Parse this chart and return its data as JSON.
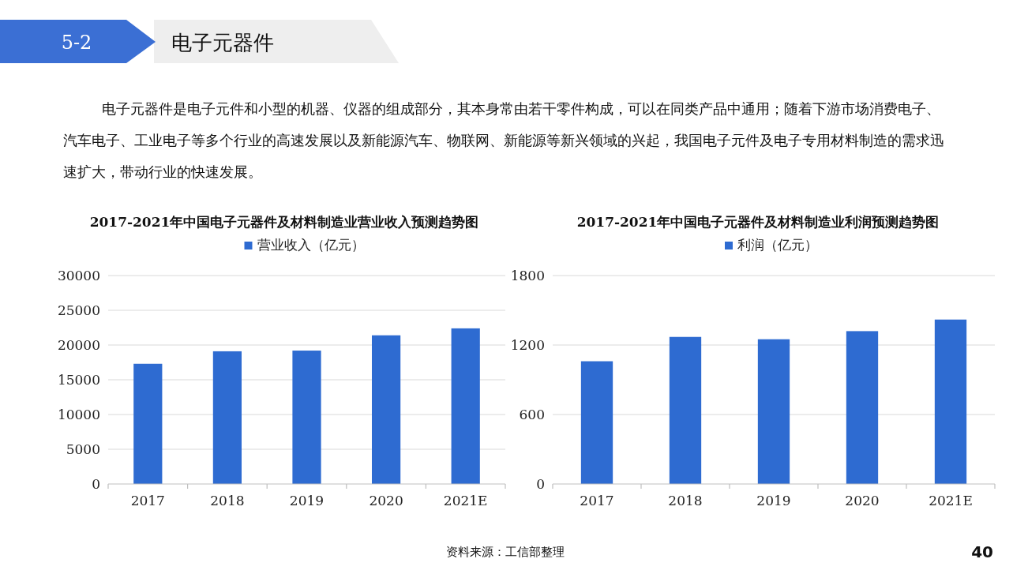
{
  "chart_data": [
    {
      "type": "other",
      "title": "电子元器件",
      "annotations": [
        "5-2",
        "电子元器件是电子元件和小型的机器、仪器的组成部分，其本身常由若干零件构成，可以在同类产品中通用；随着下游市场消费电子、汽车电子、工业电子等多个行业的高速发展以及新能源汽车、物联网、新能源等新兴领域的兴起，我国电子元件及电子专用材料制造的需求迅速扩大，带动行业的快速发展。",
        "资料来源：工信部整理",
        "40"
      ]
    },
    {
      "type": "bar",
      "title": "2017-2021年中国电子元器件及材料制造业营业收入预测趋势图",
      "categories": [
        "2017",
        "2018",
        "2019",
        "2020",
        "2021E"
      ],
      "series": [
        {
          "name": "营业收入（亿元）",
          "color": "#2e6bd1",
          "values": [
            17300,
            19100,
            19200,
            21400,
            22400
          ]
        }
      ],
      "ylim": [
        0,
        30000
      ],
      "yticks": [
        0,
        5000,
        10000,
        15000,
        20000,
        25000,
        30000
      ],
      "grid": "y",
      "legend": "top"
    },
    {
      "type": "bar",
      "title": "2017-2021年中国电子元器件及材料制造业利润预测趋势图",
      "categories": [
        "2017",
        "2018",
        "2019",
        "2020",
        "2021E"
      ],
      "series": [
        {
          "name": "利润（亿元）",
          "color": "#2e6bd1",
          "values": [
            1060,
            1270,
            1250,
            1320,
            1420
          ]
        }
      ],
      "ylim": [
        0,
        1800
      ],
      "yticks": [
        0,
        600,
        1200,
        1800
      ],
      "grid": "y",
      "legend": "top"
    }
  ]
}
